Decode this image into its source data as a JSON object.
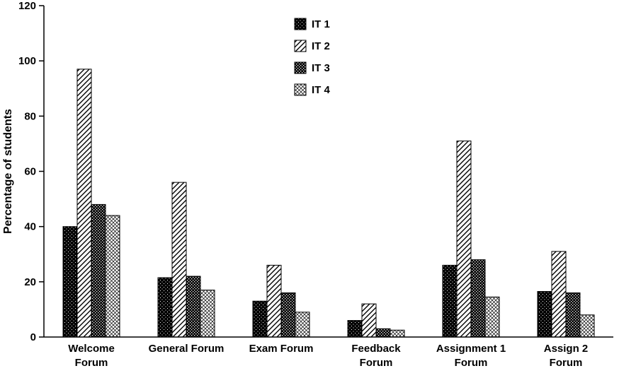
{
  "colors": {
    "foreground": "#000000",
    "background": "#ffffff"
  },
  "chart_data": {
    "type": "bar",
    "title": "",
    "xlabel": "",
    "ylabel": "Percentage of students",
    "ylim": [
      0,
      120
    ],
    "yticks": [
      0,
      20,
      40,
      60,
      80,
      100,
      120
    ],
    "grid": false,
    "legend_position": "top-center",
    "categories": [
      [
        "Welcome",
        "Forum"
      ],
      [
        "General Forum"
      ],
      [
        "Exam Forum"
      ],
      [
        "Feedback",
        "Forum"
      ],
      [
        "Assignment 1",
        "Forum"
      ],
      [
        "Assign 2",
        "Forum"
      ]
    ],
    "series": [
      {
        "name": "IT 1",
        "pattern": "dots-on-black",
        "values": [
          40,
          21.5,
          13,
          6,
          26,
          16.5
        ]
      },
      {
        "name": "IT 2",
        "pattern": "diagonal-hatch",
        "values": [
          97,
          56,
          26,
          12,
          71,
          31
        ]
      },
      {
        "name": "IT 3",
        "pattern": "dense-dots-dark",
        "values": [
          48,
          22,
          16,
          3,
          28,
          16
        ]
      },
      {
        "name": "IT 4",
        "pattern": "light-crosshatch",
        "values": [
          44,
          17,
          9,
          2.5,
          14.5,
          8
        ]
      }
    ]
  }
}
